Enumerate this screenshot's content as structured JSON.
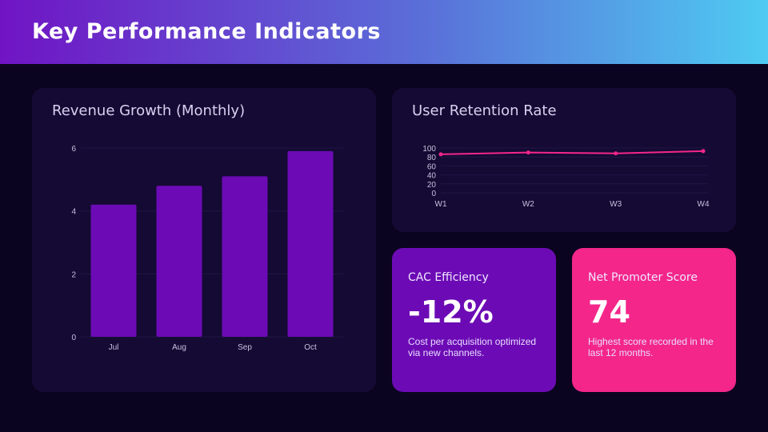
{
  "header": {
    "title": "Key Performance Indicators"
  },
  "revenue": {
    "title": "Revenue Growth (Monthly)"
  },
  "retention": {
    "title": "User Retention Rate"
  },
  "cac": {
    "title": "CAC Efficiency",
    "value": "-12%",
    "description": "Cost per acquisition optimized via new channels.",
    "color": "#6c0bb5"
  },
  "nps": {
    "title": "Net Promoter Score",
    "value": "74",
    "description": "Highest score recorded in the last 12 months.",
    "color": "#f4268a"
  },
  "chart_data": [
    {
      "type": "bar",
      "title": "Revenue Growth (Monthly)",
      "categories": [
        "Jul",
        "Aug",
        "Sep",
        "Oct"
      ],
      "values": [
        4.2,
        4.8,
        5.1,
        5.9
      ],
      "ylim": [
        0,
        6
      ],
      "yticks": [
        0,
        2,
        4,
        6
      ],
      "grid": true,
      "color": "#6c0bb5"
    },
    {
      "type": "line",
      "title": "User Retention Rate",
      "categories": [
        "W1",
        "W2",
        "W3",
        "W4"
      ],
      "values": [
        86,
        90,
        88,
        93
      ],
      "ylim": [
        0,
        100
      ],
      "yticks": [
        0,
        20,
        40,
        60,
        80,
        100
      ],
      "grid": true,
      "color": "#f4268a"
    }
  ]
}
